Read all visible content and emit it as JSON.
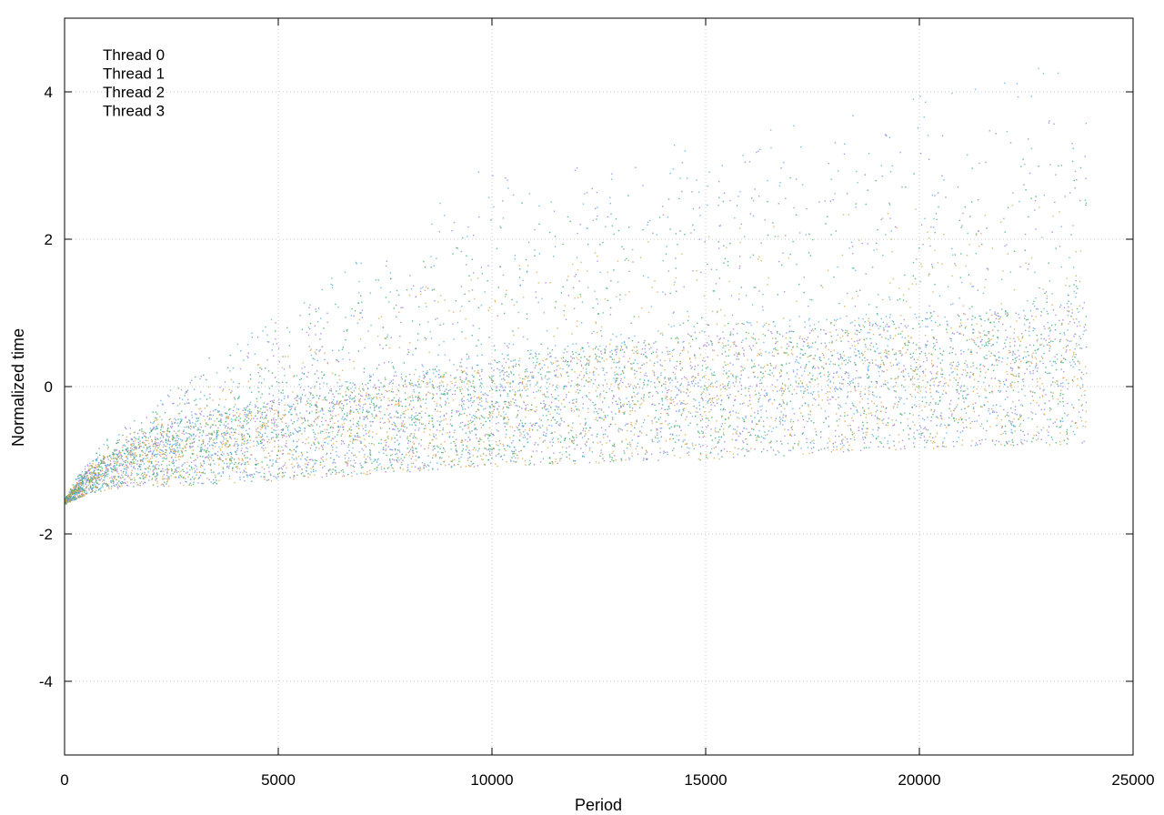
{
  "chart_data": {
    "type": "scatter",
    "title": "",
    "xlabel": "Period",
    "ylabel": "Normalized time",
    "xlim": [
      0,
      25000
    ],
    "ylim": [
      -5,
      5
    ],
    "xticks": [
      0,
      5000,
      10000,
      15000,
      20000,
      25000
    ],
    "yticks": [
      -4,
      -2,
      0,
      2,
      4
    ],
    "xtick_labels": [
      "0",
      "5000",
      "10000",
      "15000",
      "20000",
      "25000"
    ],
    "ytick_labels": [
      "-4",
      "-2",
      "0",
      "2",
      "4"
    ],
    "grid": true,
    "legend_position": "top-left",
    "x_extent": [
      0,
      23900
    ],
    "series": [
      {
        "name": "Thread 0",
        "color": "#9a6fd9",
        "trend": [
          [
            0,
            -1.55
          ],
          [
            200,
            -1.45
          ],
          [
            500,
            -1.3
          ],
          [
            1000,
            -1.15
          ],
          [
            2000,
            -0.95
          ],
          [
            3000,
            -0.85
          ],
          [
            5000,
            -0.7
          ],
          [
            7000,
            -0.55
          ],
          [
            10000,
            -0.35
          ],
          [
            13000,
            -0.2
          ],
          [
            16000,
            -0.1
          ],
          [
            20000,
            0.05
          ],
          [
            23900,
            0.2
          ]
        ],
        "upper_envelope": [
          [
            0,
            -1.5
          ],
          [
            500,
            -1.0
          ],
          [
            1000,
            -0.7
          ],
          [
            2000,
            -0.3
          ],
          [
            3000,
            0.2
          ],
          [
            5000,
            0.9
          ],
          [
            7000,
            1.5
          ],
          [
            9000,
            2.3
          ],
          [
            10000,
            3.0
          ],
          [
            13000,
            3.0
          ],
          [
            16000,
            3.2
          ],
          [
            20000,
            3.5
          ],
          [
            23900,
            3.8
          ]
        ],
        "lower_envelope": [
          [
            0,
            -1.6
          ],
          [
            500,
            -1.5
          ],
          [
            1000,
            -1.45
          ],
          [
            3000,
            -1.45
          ],
          [
            5000,
            -1.4
          ],
          [
            7000,
            -1.35
          ],
          [
            10000,
            -1.25
          ],
          [
            15000,
            -1.2
          ],
          [
            20000,
            -1.05
          ],
          [
            23900,
            -1.0
          ]
        ]
      },
      {
        "name": "Thread 1",
        "color": "#27a85a",
        "trend": [
          [
            0,
            -1.55
          ],
          [
            200,
            -1.45
          ],
          [
            500,
            -1.3
          ],
          [
            1000,
            -1.15
          ],
          [
            2000,
            -0.95
          ],
          [
            3000,
            -0.85
          ],
          [
            5000,
            -0.7
          ],
          [
            7000,
            -0.55
          ],
          [
            10000,
            -0.35
          ],
          [
            13000,
            -0.2
          ],
          [
            16000,
            -0.1
          ],
          [
            20000,
            0.05
          ],
          [
            23900,
            0.2
          ]
        ],
        "upper_envelope": [
          [
            0,
            -1.5
          ],
          [
            500,
            -1.0
          ],
          [
            1000,
            -0.7
          ],
          [
            2000,
            -0.3
          ],
          [
            3000,
            0.2
          ],
          [
            5000,
            0.8
          ],
          [
            7000,
            1.4
          ],
          [
            9000,
            2.0
          ],
          [
            10000,
            2.5
          ],
          [
            13000,
            2.6
          ],
          [
            16000,
            2.8
          ],
          [
            20000,
            3.0
          ],
          [
            23900,
            3.2
          ]
        ],
        "lower_envelope": [
          [
            0,
            -1.6
          ],
          [
            500,
            -1.5
          ],
          [
            1000,
            -1.45
          ],
          [
            3000,
            -1.45
          ],
          [
            5000,
            -1.4
          ],
          [
            7000,
            -1.35
          ],
          [
            10000,
            -1.25
          ],
          [
            15000,
            -1.2
          ],
          [
            20000,
            -1.05
          ],
          [
            23900,
            -1.0
          ]
        ]
      },
      {
        "name": "Thread 2",
        "color": "#4aa8e6",
        "trend": [
          [
            0,
            -1.55
          ],
          [
            200,
            -1.45
          ],
          [
            500,
            -1.3
          ],
          [
            1000,
            -1.15
          ],
          [
            2000,
            -0.95
          ],
          [
            3000,
            -0.85
          ],
          [
            5000,
            -0.65
          ],
          [
            7000,
            -0.5
          ],
          [
            10000,
            -0.3
          ],
          [
            13000,
            -0.15
          ],
          [
            16000,
            0.0
          ],
          [
            20000,
            0.1
          ],
          [
            23900,
            0.3
          ]
        ],
        "upper_envelope": [
          [
            0,
            -1.5
          ],
          [
            500,
            -1.0
          ],
          [
            1000,
            -0.7
          ],
          [
            2000,
            -0.3
          ],
          [
            3000,
            0.3
          ],
          [
            5000,
            1.0
          ],
          [
            7000,
            1.8
          ],
          [
            9000,
            2.6
          ],
          [
            10000,
            3.2
          ],
          [
            13000,
            3.3
          ],
          [
            16000,
            3.5
          ],
          [
            20000,
            4.0
          ],
          [
            23900,
            4.5
          ]
        ],
        "lower_envelope": [
          [
            0,
            -1.6
          ],
          [
            500,
            -1.5
          ],
          [
            1000,
            -1.45
          ],
          [
            3000,
            -1.45
          ],
          [
            5000,
            -1.4
          ],
          [
            7000,
            -1.35
          ],
          [
            10000,
            -1.25
          ],
          [
            15000,
            -1.2
          ],
          [
            20000,
            -1.05
          ],
          [
            23900,
            -1.0
          ]
        ]
      },
      {
        "name": "Thread 3",
        "color": "#d8a23a",
        "trend": [
          [
            0,
            -1.55
          ],
          [
            200,
            -1.45
          ],
          [
            500,
            -1.3
          ],
          [
            1000,
            -1.15
          ],
          [
            2000,
            -1.0
          ],
          [
            3000,
            -0.9
          ],
          [
            5000,
            -0.75
          ],
          [
            7000,
            -0.6
          ],
          [
            10000,
            -0.4
          ],
          [
            13000,
            -0.25
          ],
          [
            16000,
            -0.15
          ],
          [
            20000,
            0.0
          ],
          [
            23900,
            0.15
          ]
        ],
        "upper_envelope": [
          [
            0,
            -1.5
          ],
          [
            500,
            -1.1
          ],
          [
            1000,
            -0.8
          ],
          [
            2000,
            -0.5
          ],
          [
            3000,
            0.0
          ],
          [
            5000,
            0.5
          ],
          [
            7000,
            1.0
          ],
          [
            9000,
            1.5
          ],
          [
            10000,
            1.8
          ],
          [
            13000,
            2.0
          ],
          [
            16000,
            2.2
          ],
          [
            20000,
            2.5
          ],
          [
            23900,
            2.8
          ]
        ],
        "lower_envelope": [
          [
            0,
            -1.6
          ],
          [
            500,
            -1.5
          ],
          [
            1000,
            -1.45
          ],
          [
            3000,
            -1.45
          ],
          [
            5000,
            -1.4
          ],
          [
            7000,
            -1.35
          ],
          [
            10000,
            -1.25
          ],
          [
            15000,
            -1.2
          ],
          [
            20000,
            -1.05
          ],
          [
            23900,
            -1.0
          ]
        ]
      }
    ]
  }
}
